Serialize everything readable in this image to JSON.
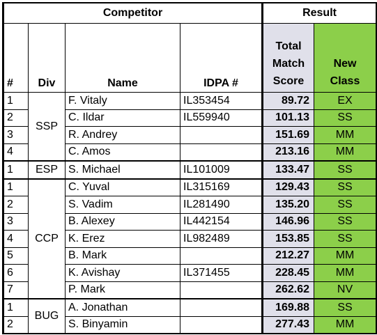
{
  "headers": {
    "competitor": "Competitor",
    "result": "Result",
    "num": "#",
    "div": "Div",
    "name": "Name",
    "idpa": "IDPA #",
    "score_line1": "Total",
    "score_line2": "Match",
    "score_line3": "Score",
    "class_line1": "New",
    "class_line2": "Class"
  },
  "groups": [
    {
      "div": "SSP",
      "rows": [
        {
          "num": "1",
          "name": "F. Vitaly",
          "idpa": "IL353454",
          "score": "89.72",
          "cls": "EX"
        },
        {
          "num": "2",
          "name": "C. Ildar",
          "idpa": "IL559940",
          "score": "101.13",
          "cls": "SS"
        },
        {
          "num": "3",
          "name": "R.  Andrey",
          "idpa": "",
          "score": "151.69",
          "cls": "MM"
        },
        {
          "num": "4",
          "name": "C. Amos",
          "idpa": "",
          "score": "213.16",
          "cls": "MM"
        }
      ]
    },
    {
      "div": "ESP",
      "rows": [
        {
          "num": "1",
          "name": "S.  Michael",
          "idpa": "IL101009",
          "score": "133.47",
          "cls": "SS"
        }
      ]
    },
    {
      "div": "CCP",
      "rows": [
        {
          "num": "1",
          "name": "C. Yuval",
          "idpa": "IL315169",
          "score": "129.43",
          "cls": "SS"
        },
        {
          "num": "2",
          "name": "S. Vadim",
          "idpa": "IL281490",
          "score": "135.20",
          "cls": "SS"
        },
        {
          "num": "3",
          "name": "B. Alexey",
          "idpa": "IL442154",
          "score": "146.96",
          "cls": "SS"
        },
        {
          "num": "4",
          "name": "K. Erez",
          "idpa": "IL982489",
          "score": "153.85",
          "cls": "SS"
        },
        {
          "num": "5",
          "name": "B. Mark",
          "idpa": "",
          "score": "212.27",
          "cls": "MM"
        },
        {
          "num": "6",
          "name": "K. Avishay",
          "idpa": "IL371455",
          "score": "228.45",
          "cls": "MM"
        },
        {
          "num": "7",
          "name": "P.  Mark",
          "idpa": "",
          "score": "262.62",
          "cls": "NV"
        }
      ]
    },
    {
      "div": "BUG",
      "rows": [
        {
          "num": "1",
          "name": "A. Jonathan",
          "idpa": "",
          "score": "169.88",
          "cls": "SS"
        },
        {
          "num": "2",
          "name": "S. Binyamin",
          "idpa": "",
          "score": "277.43",
          "cls": "MM"
        }
      ]
    }
  ],
  "colors": {
    "score_bg": "#e0e0ea",
    "class_bg": "#8ccf4a"
  }
}
